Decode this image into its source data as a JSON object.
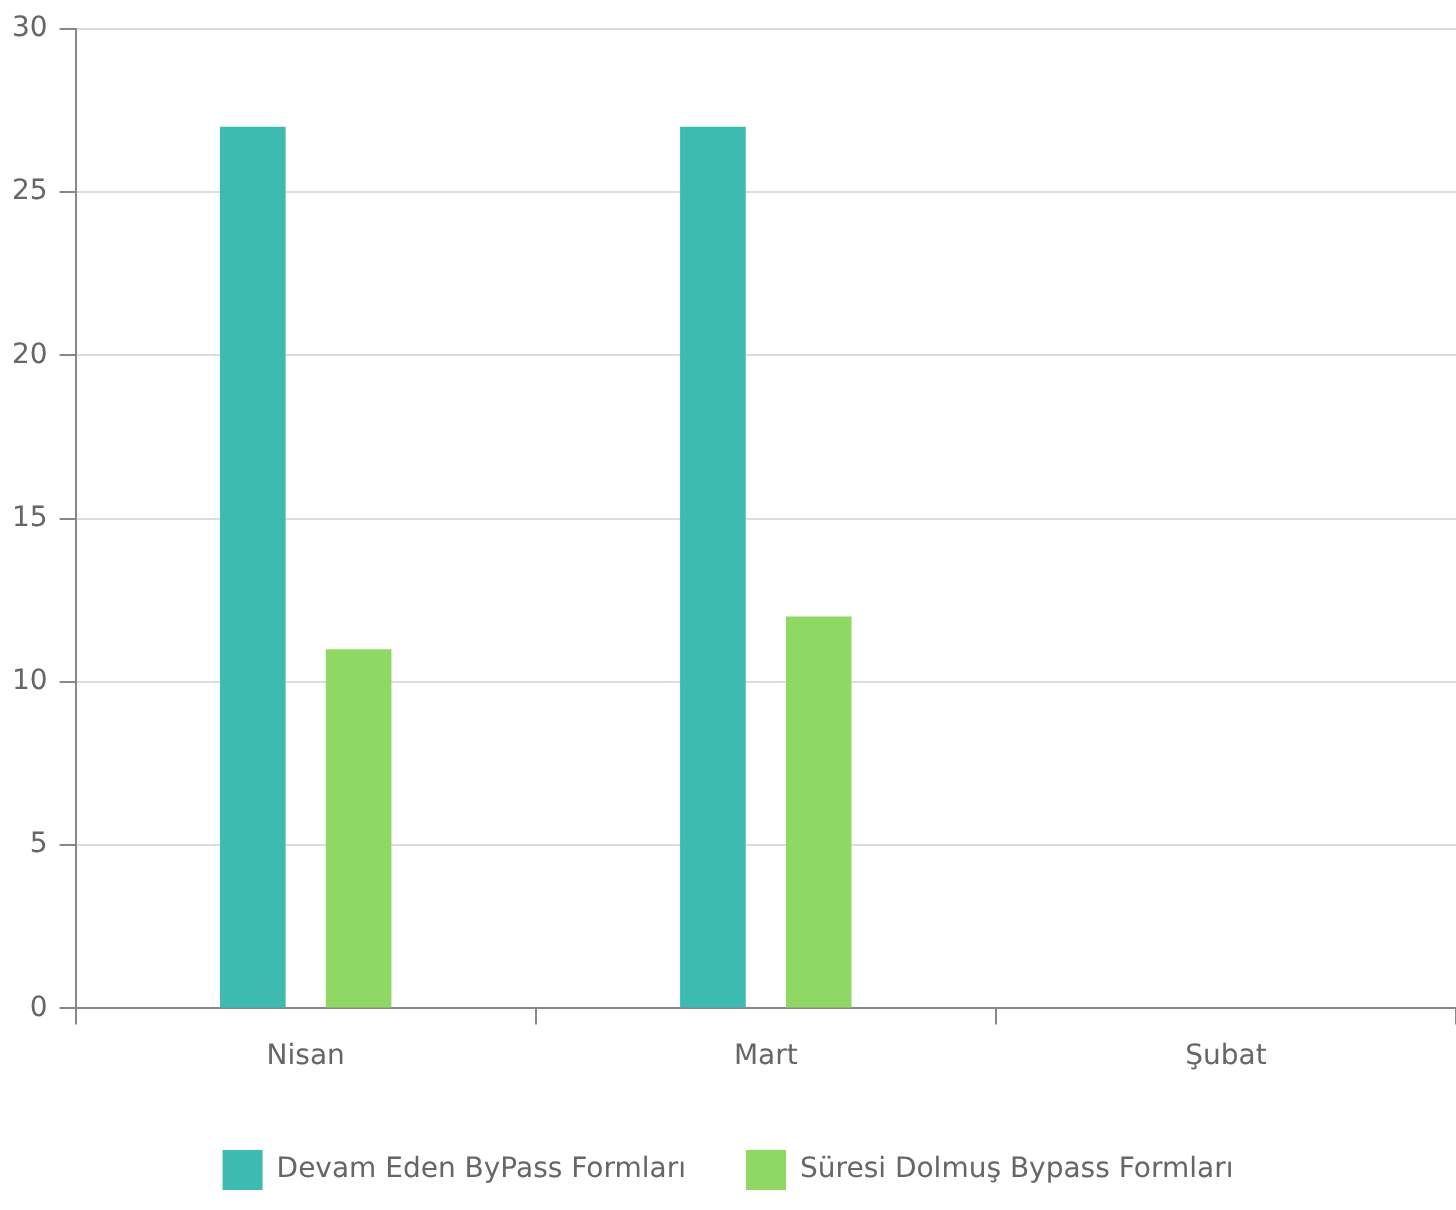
{
  "chart_data": {
    "type": "bar",
    "categories": [
      "Nisan",
      "Mart",
      "Şubat"
    ],
    "series": [
      {
        "name": "Devam Eden ByPass Formları",
        "color": "#3dbbb0",
        "values": [
          27,
          27,
          null
        ]
      },
      {
        "name": "Süresi Dolmuş Bypass Formları",
        "color": "#8fd863",
        "values": [
          11,
          12,
          null
        ]
      }
    ],
    "ylim": [
      0,
      30
    ],
    "yticks": [
      0,
      5,
      10,
      15,
      20,
      25,
      30
    ],
    "grid": "y",
    "legend": "bottom"
  }
}
